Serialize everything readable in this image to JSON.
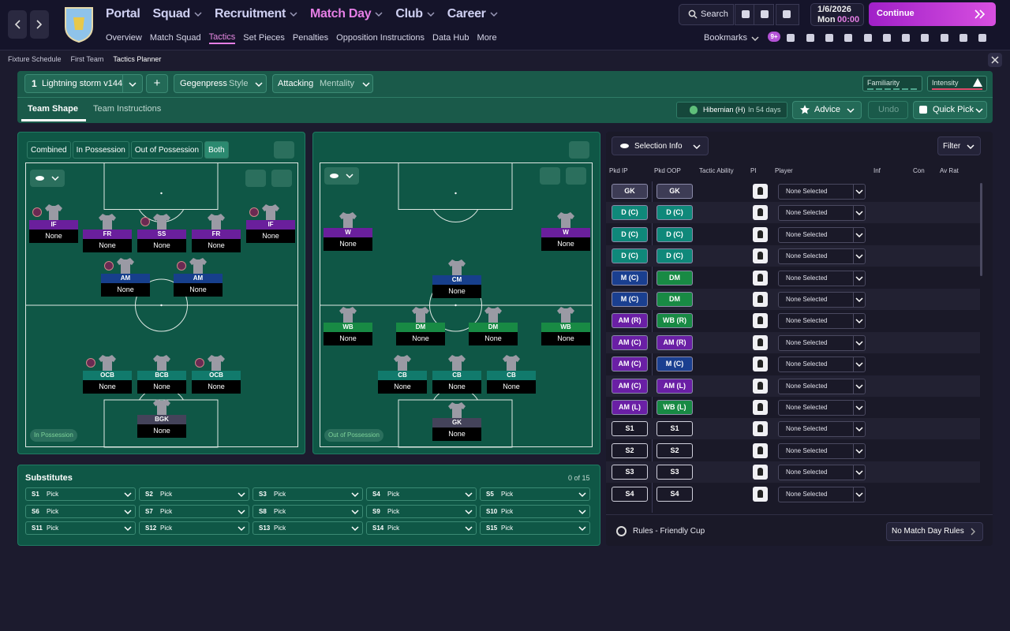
{
  "nav": {
    "primary": [
      "Portal",
      "Squad",
      "Recruitment",
      "Match Day",
      "Club",
      "Career"
    ],
    "secondary": [
      "Overview",
      "Match Squad",
      "Tactics",
      "Set Pieces",
      "Penalties",
      "Opposition Instructions",
      "Data Hub",
      "More"
    ],
    "search": "Search",
    "date": "1/6/2026",
    "day": "Mon",
    "time": "00:00",
    "continue": "Continue",
    "bookmarks": "Bookmarks",
    "badge": "9+"
  },
  "breadcrumb": [
    "Fixture Schedule",
    "First Team",
    "Tactics Planner"
  ],
  "tactic": {
    "slot": "1",
    "name": "Lightning storm v144",
    "add": "+",
    "style": "Gegenpress",
    "style_label": "Style",
    "mentality": "Attacking",
    "mentality_label": "Mentality",
    "familiarity": "Familiarity",
    "intensity": "Intensity"
  },
  "tabs": [
    "Team Shape",
    "Team Instructions"
  ],
  "fixture": {
    "opponent": "Hibernian (H)",
    "when": "In 54 days"
  },
  "actions": [
    "Advice",
    "Undo",
    "Quick Pick"
  ],
  "view_toggles": [
    "Combined",
    "In Possession",
    "Out of Possession",
    "Both"
  ],
  "pitches": [
    {
      "label": "In Possession",
      "players": [
        {
          "role": "IF",
          "name": "None",
          "color": "#6a1f9c"
        },
        {
          "role": "FR",
          "name": "None",
          "color": "#6a1f9c"
        },
        {
          "role": "SS",
          "name": "None",
          "color": "#6a1f9c"
        },
        {
          "role": "FR",
          "name": "None",
          "color": "#6a1f9c"
        },
        {
          "role": "IF",
          "name": "None",
          "color": "#6a1f9c"
        },
        {
          "role": "AM",
          "name": "None",
          "color": "#173f8c"
        },
        {
          "role": "AM",
          "name": "None",
          "color": "#173f8c"
        },
        {
          "role": "OCB",
          "name": "None",
          "color": "#117a6c"
        },
        {
          "role": "BCB",
          "name": "None",
          "color": "#117a6c"
        },
        {
          "role": "OCB",
          "name": "None",
          "color": "#117a6c"
        },
        {
          "role": "BGK",
          "name": "None",
          "color": "#44435a"
        }
      ]
    },
    {
      "label": "Out of Possession",
      "players": [
        {
          "role": "W",
          "name": "None",
          "color": "#6a1f9c"
        },
        {
          "role": "W",
          "name": "None",
          "color": "#6a1f9c"
        },
        {
          "role": "CM",
          "name": "None",
          "color": "#173f8c"
        },
        {
          "role": "WB",
          "name": "None",
          "color": "#188a44"
        },
        {
          "role": "DM",
          "name": "None",
          "color": "#188a44"
        },
        {
          "role": "DM",
          "name": "None",
          "color": "#188a44"
        },
        {
          "role": "WB",
          "name": "None",
          "color": "#188a44"
        },
        {
          "role": "CB",
          "name": "None",
          "color": "#117a6c"
        },
        {
          "role": "CB",
          "name": "None",
          "color": "#117a6c"
        },
        {
          "role": "CB",
          "name": "None",
          "color": "#117a6c"
        },
        {
          "role": "GK",
          "name": "None",
          "color": "#44435a"
        }
      ]
    }
  ],
  "substitutes": {
    "title": "Substitutes",
    "count": "0 of 15",
    "slots": [
      {
        "id": "S1",
        "value": "Pick"
      },
      {
        "id": "S2",
        "value": "Pick"
      },
      {
        "id": "S3",
        "value": "Pick"
      },
      {
        "id": "S4",
        "value": "Pick"
      },
      {
        "id": "S5",
        "value": "Pick"
      },
      {
        "id": "S6",
        "value": "Pick"
      },
      {
        "id": "S7",
        "value": "Pick"
      },
      {
        "id": "S8",
        "value": "Pick"
      },
      {
        "id": "S9",
        "value": "Pick"
      },
      {
        "id": "S10",
        "value": "Pick"
      },
      {
        "id": "S11",
        "value": "Pick"
      },
      {
        "id": "S12",
        "value": "Pick"
      },
      {
        "id": "S13",
        "value": "Pick"
      },
      {
        "id": "S14",
        "value": "Pick"
      },
      {
        "id": "S15",
        "value": "Pick"
      }
    ]
  },
  "selection": {
    "dropdown": "Selection Info",
    "filter": "Filter",
    "headers": [
      "Pkd IP",
      "Pkd OOP",
      "Tactic Ability",
      "PI",
      "Player",
      "Inf",
      "Con",
      "Av Rat"
    ],
    "rows": [
      {
        "ip": "GK",
        "ip_color": "#3d3c55",
        "oop": "GK",
        "oop_color": "#3d3c55",
        "player": "None Selected"
      },
      {
        "ip": "D (C)",
        "ip_color": "#0f887a",
        "oop": "D (C)",
        "oop_color": "#0f887a",
        "player": "None Selected"
      },
      {
        "ip": "D (C)",
        "ip_color": "#0f887a",
        "oop": "D (C)",
        "oop_color": "#0f887a",
        "player": "None Selected"
      },
      {
        "ip": "D (C)",
        "ip_color": "#0f887a",
        "oop": "D (C)",
        "oop_color": "#0f887a",
        "player": "None Selected"
      },
      {
        "ip": "M (C)",
        "ip_color": "#1a3f90",
        "oop": "DM",
        "oop_color": "#188a44",
        "player": "None Selected"
      },
      {
        "ip": "M (C)",
        "ip_color": "#1a3f90",
        "oop": "DM",
        "oop_color": "#188a44",
        "player": "None Selected"
      },
      {
        "ip": "AM (R)",
        "ip_color": "#6a1fa5",
        "oop": "WB (R)",
        "oop_color": "#188a44",
        "player": "None Selected"
      },
      {
        "ip": "AM (C)",
        "ip_color": "#6a1fa5",
        "oop": "AM (R)",
        "oop_color": "#6a1fa5",
        "player": "None Selected"
      },
      {
        "ip": "AM (C)",
        "ip_color": "#6a1fa5",
        "oop": "M (C)",
        "oop_color": "#1a3f90",
        "player": "None Selected"
      },
      {
        "ip": "AM (C)",
        "ip_color": "#6a1fa5",
        "oop": "AM (L)",
        "oop_color": "#6a1fa5",
        "player": "None Selected"
      },
      {
        "ip": "AM (L)",
        "ip_color": "#6a1fa5",
        "oop": "WB (L)",
        "oop_color": "#188a44",
        "player": "None Selected"
      },
      {
        "ip": "S1",
        "ip_color": "#1a1928",
        "oop": "S1",
        "oop_color": "#1a1928",
        "player": "None Selected"
      },
      {
        "ip": "S2",
        "ip_color": "#1a1928",
        "oop": "S2",
        "oop_color": "#1a1928",
        "player": "None Selected"
      },
      {
        "ip": "S3",
        "ip_color": "#1a1928",
        "oop": "S3",
        "oop_color": "#1a1928",
        "player": "None Selected"
      },
      {
        "ip": "S4",
        "ip_color": "#1a1928",
        "oop": "S4",
        "oop_color": "#1a1928",
        "player": "None Selected"
      }
    ]
  },
  "rules": {
    "label": "Rules - Friendly Cup",
    "button": "No Match Day Rules"
  }
}
